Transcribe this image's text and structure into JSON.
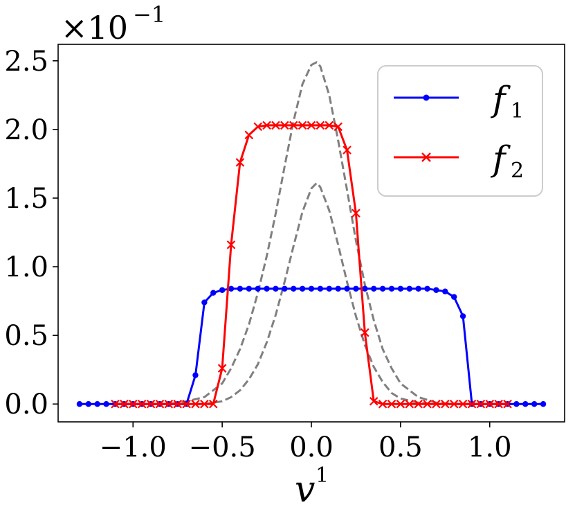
{
  "chart_data": {
    "type": "line",
    "xlabel": "v",
    "xlabel_sup": "1",
    "multiplier": {
      "base": "×10",
      "exponent": "−1"
    },
    "xlim": [
      -1.42,
      1.42
    ],
    "ylim": [
      -0.13,
      2.62
    ],
    "x_ticks": [
      {
        "value": -1.0,
        "label": "−1.0"
      },
      {
        "value": -0.5,
        "label": "−0.5"
      },
      {
        "value": 0.0,
        "label": "0.0"
      },
      {
        "value": 0.5,
        "label": "0.5"
      },
      {
        "value": 1.0,
        "label": "1.0"
      }
    ],
    "y_ticks": [
      {
        "value": 0.0,
        "label": "0.0"
      },
      {
        "value": 0.5,
        "label": "0.5"
      },
      {
        "value": 1.0,
        "label": "1.0"
      },
      {
        "value": 1.5,
        "label": "1.5"
      },
      {
        "value": 2.0,
        "label": "2.0"
      },
      {
        "value": 2.5,
        "label": "2.5"
      }
    ],
    "grid": false,
    "legend_position": "top-right",
    "series": [
      {
        "name": "f",
        "name_sub": "1",
        "color": "#0000ff",
        "style": "solid",
        "marker": "dot",
        "x": [
          -1.3,
          -1.25,
          -1.2,
          -1.15,
          -1.1,
          -1.05,
          -1.0,
          -0.95,
          -0.9,
          -0.85,
          -0.8,
          -0.75,
          -0.7,
          -0.65,
          -0.6,
          -0.55,
          -0.5,
          -0.45,
          -0.4,
          -0.35,
          -0.3,
          -0.25,
          -0.2,
          -0.15,
          -0.1,
          -0.05,
          0.0,
          0.05,
          0.1,
          0.15,
          0.2,
          0.25,
          0.3,
          0.35,
          0.4,
          0.45,
          0.5,
          0.55,
          0.6,
          0.65,
          0.7,
          0.75,
          0.8,
          0.85,
          0.9,
          0.95,
          1.0,
          1.05,
          1.1,
          1.15,
          1.2,
          1.25,
          1.3
        ],
        "y": [
          0,
          0,
          0,
          0,
          0,
          0,
          0,
          0,
          0,
          0,
          0,
          0,
          0,
          0.21,
          0.74,
          0.81,
          0.83,
          0.84,
          0.84,
          0.84,
          0.84,
          0.84,
          0.84,
          0.84,
          0.84,
          0.84,
          0.84,
          0.84,
          0.84,
          0.84,
          0.84,
          0.84,
          0.84,
          0.84,
          0.84,
          0.84,
          0.84,
          0.84,
          0.84,
          0.84,
          0.83,
          0.82,
          0.78,
          0.64,
          0,
          0,
          0,
          0,
          0,
          0,
          0,
          0,
          0
        ]
      },
      {
        "name": "f",
        "name_sub": "2",
        "color": "#ff0000",
        "style": "solid",
        "marker": "x",
        "x": [
          -1.1,
          -1.05,
          -1.0,
          -0.95,
          -0.9,
          -0.85,
          -0.8,
          -0.75,
          -0.7,
          -0.65,
          -0.6,
          -0.55,
          -0.5,
          -0.45,
          -0.4,
          -0.35,
          -0.3,
          -0.25,
          -0.2,
          -0.15,
          -0.1,
          -0.05,
          0.0,
          0.05,
          0.1,
          0.15,
          0.2,
          0.25,
          0.3,
          0.35,
          0.4,
          0.45,
          0.5,
          0.55,
          0.6,
          0.65,
          0.7,
          0.75,
          0.8,
          0.85,
          0.9,
          0.95,
          1.0,
          1.05,
          1.1
        ],
        "y": [
          0,
          0,
          0,
          0,
          0,
          0,
          0,
          0,
          0,
          0,
          0,
          0,
          0.26,
          1.16,
          1.76,
          1.96,
          2.02,
          2.03,
          2.03,
          2.03,
          2.03,
          2.03,
          2.03,
          2.03,
          2.03,
          2.02,
          1.85,
          1.39,
          0.52,
          0.02,
          0,
          0,
          0,
          0,
          0,
          0,
          0,
          0,
          0,
          0,
          0,
          0,
          0,
          0,
          0
        ]
      },
      {
        "color": "#808080",
        "style": "dashed",
        "marker": "none",
        "x": [
          -1.1,
          -1.0,
          -0.9,
          -0.8,
          -0.7,
          -0.6,
          -0.5,
          -0.45,
          -0.4,
          -0.35,
          -0.3,
          -0.25,
          -0.2,
          -0.15,
          -0.1,
          -0.05,
          0.0,
          0.03,
          0.05,
          0.1,
          0.15,
          0.2,
          0.25,
          0.3,
          0.35,
          0.4,
          0.45,
          0.5,
          0.6,
          0.7,
          0.8,
          0.9,
          1.0,
          1.1
        ],
        "y": [
          0.0,
          0.0,
          0.0,
          0.0,
          0.02,
          0.05,
          0.15,
          0.26,
          0.4,
          0.58,
          0.81,
          1.08,
          1.39,
          1.73,
          2.06,
          2.33,
          2.47,
          2.49,
          2.46,
          2.25,
          1.92,
          1.56,
          1.19,
          0.87,
          0.61,
          0.4,
          0.26,
          0.15,
          0.05,
          0.01,
          0.0,
          0.0,
          0.0,
          0.0
        ]
      },
      {
        "color": "#808080",
        "style": "dashed",
        "marker": "none",
        "x": [
          -1.1,
          -1.0,
          -0.9,
          -0.8,
          -0.7,
          -0.6,
          -0.5,
          -0.45,
          -0.4,
          -0.35,
          -0.3,
          -0.25,
          -0.2,
          -0.15,
          -0.1,
          -0.05,
          0.0,
          0.03,
          0.05,
          0.1,
          0.15,
          0.2,
          0.25,
          0.3,
          0.35,
          0.4,
          0.45,
          0.5,
          0.6,
          0.7,
          0.8,
          0.9,
          1.0,
          1.1
        ],
        "y": [
          0.0,
          0.0,
          0.0,
          0.0,
          0.0,
          0.0,
          0.02,
          0.05,
          0.1,
          0.18,
          0.29,
          0.45,
          0.65,
          0.89,
          1.15,
          1.4,
          1.57,
          1.61,
          1.58,
          1.41,
          1.16,
          0.89,
          0.64,
          0.43,
          0.27,
          0.16,
          0.08,
          0.04,
          0.01,
          0.0,
          0.0,
          0.0,
          0.0,
          0.0
        ]
      }
    ]
  }
}
